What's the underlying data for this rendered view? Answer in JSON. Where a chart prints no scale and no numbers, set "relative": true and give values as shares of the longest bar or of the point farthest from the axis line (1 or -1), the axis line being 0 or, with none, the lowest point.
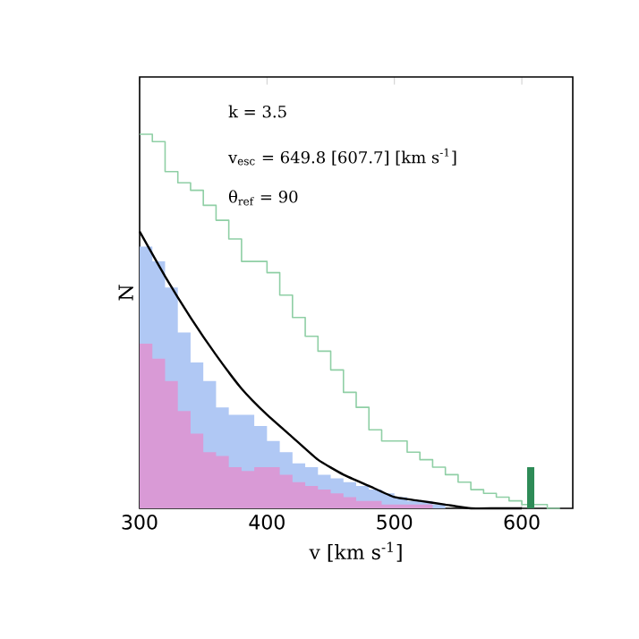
{
  "chart_data": {
    "type": "histogram",
    "relative": true,
    "xlabel": "v [km s$^{-1}$]",
    "ylabel": "N",
    "xlim": [
      300,
      640
    ],
    "xticks": [
      300,
      400,
      500,
      600
    ],
    "bins": [
      300,
      310,
      320,
      330,
      340,
      350,
      360,
      370,
      380,
      390,
      400,
      410,
      420,
      430,
      440,
      450,
      460,
      470,
      480,
      490,
      500,
      510,
      520,
      530,
      540,
      550,
      560,
      570,
      580,
      590,
      600,
      610,
      620,
      630,
      640
    ],
    "series": [
      {
        "color": "#b0c8f4",
        "values": [
          0.7,
          0.66,
          0.59,
          0.47,
          0.39,
          0.34,
          0.27,
          0.25,
          0.25,
          0.22,
          0.18,
          0.15,
          0.12,
          0.11,
          0.09,
          0.08,
          0.07,
          0.06,
          0.05,
          0.04,
          0.03,
          0.02,
          0.02,
          0.01,
          0,
          0,
          0,
          0,
          0,
          0,
          0,
          0,
          0,
          0
        ]
      },
      {
        "color": "#d99ad6",
        "values": [
          0.44,
          0.4,
          0.34,
          0.26,
          0.2,
          0.15,
          0.14,
          0.11,
          0.1,
          0.11,
          0.11,
          0.09,
          0.07,
          0.06,
          0.05,
          0.04,
          0.03,
          0.02,
          0.02,
          0.01,
          0.01,
          0.01,
          0.01,
          0,
          0,
          0,
          0,
          0,
          0,
          0,
          0,
          0,
          0,
          0
        ]
      },
      {
        "type": "step",
        "color": "#8fcfa5",
        "x": [
          300,
          310,
          320,
          330,
          340,
          350,
          360,
          370,
          380,
          390,
          400,
          410,
          420,
          430,
          440,
          450,
          460,
          470,
          480,
          490,
          500,
          510,
          520,
          530,
          540,
          550,
          560,
          570,
          580,
          590,
          600,
          610,
          620,
          630
        ],
        "values": [
          1.0,
          0.98,
          0.9,
          0.87,
          0.85,
          0.81,
          0.77,
          0.72,
          0.66,
          0.66,
          0.63,
          0.57,
          0.51,
          0.46,
          0.42,
          0.37,
          0.31,
          0.27,
          0.21,
          0.18,
          0.18,
          0.15,
          0.13,
          0.11,
          0.09,
          0.07,
          0.05,
          0.04,
          0.03,
          0.02,
          0.01,
          0.01,
          0,
          0
        ]
      },
      {
        "type": "line",
        "color": "#000000",
        "x": [
          300,
          320,
          340,
          360,
          380,
          400,
          420,
          440,
          460,
          480,
          500,
          520,
          540,
          560,
          580,
          600
        ],
        "values": [
          0.74,
          0.62,
          0.51,
          0.41,
          0.32,
          0.25,
          0.19,
          0.13,
          0.09,
          0.06,
          0.03,
          0.02,
          0.01,
          0,
          0,
          0
        ]
      },
      {
        "type": "bar",
        "color": "#2e8b57",
        "x": [
          607
        ],
        "values": [
          0.11
        ]
      }
    ],
    "annotations": [
      "k = 3.5",
      "v$_{esc}$ = 649.8 [607.7] [km s$^{-1}$]",
      "θ$_{ref}$ = 90"
    ]
  }
}
